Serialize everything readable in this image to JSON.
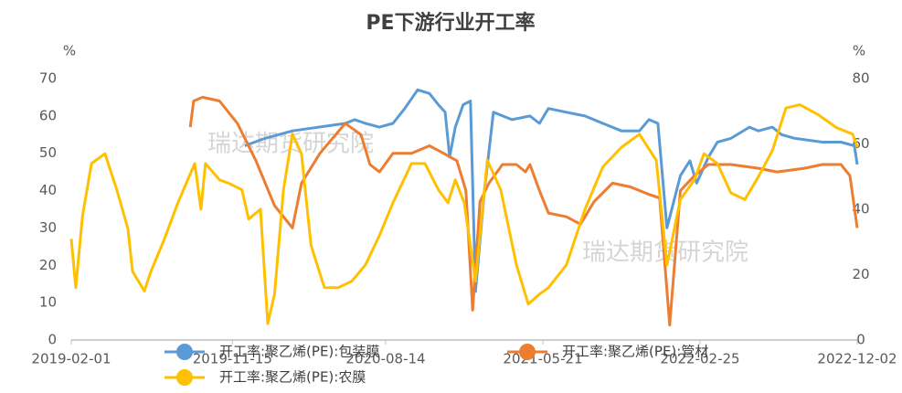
{
  "chart_data": {
    "type": "line",
    "title": "PE下游行业开工率",
    "y_unit": "%",
    "y2_unit": "%",
    "watermarks": [
      "瑞达期货研究院",
      "瑞达期货研究院"
    ],
    "xlim": [
      "2019-02-01",
      "2022-12-02"
    ],
    "xticks": [
      "2019-02-01",
      "2019-11-15",
      "2020-08-14",
      "2021-05-21",
      "2022-02-25",
      "2022-12-02"
    ],
    "ylim": [
      0,
      70
    ],
    "yticks": [
      0,
      10,
      20,
      30,
      40,
      50,
      60,
      70
    ],
    "y2lim": [
      0,
      80
    ],
    "y2ticks": [
      0,
      20,
      40,
      60,
      80
    ],
    "grid": false,
    "legend": "bottom",
    "series": [
      {
        "name": "开工率:聚乙烯(PE):包装膜",
        "color": "#5b9bd5",
        "x": [
          "2019-12-07",
          "2020-01-12",
          "2020-03-01",
          "2020-06-03",
          "2020-06-20",
          "2020-07-09",
          "2020-08-03",
          "2020-08-27",
          "2020-09-17",
          "2020-10-10",
          "2020-10-31",
          "2020-11-16",
          "2020-11-28",
          "2020-12-06",
          "2020-12-16",
          "2020-12-30",
          "2021-01-12",
          "2021-01-21",
          "2021-02-06",
          "2021-02-22",
          "2021-03-27",
          "2021-04-28",
          "2021-05-15",
          "2021-05-31",
          "2021-07-02",
          "2021-08-04",
          "2021-09-05",
          "2021-10-08",
          "2021-11-09",
          "2021-11-26",
          "2021-12-12",
          "2021-12-28",
          "2022-01-21",
          "2022-02-07",
          "2022-02-19",
          "2022-03-12",
          "2022-03-28",
          "2022-04-21",
          "2022-05-24",
          "2022-06-09",
          "2022-07-04",
          "2022-07-20",
          "2022-08-13",
          "2022-10-01",
          "2022-11-03",
          "2022-11-27",
          "2022-12-02"
        ],
        "values": [
          52,
          54,
          56,
          58,
          59,
          58,
          57,
          58,
          62,
          67,
          66,
          63,
          61,
          49,
          57,
          63,
          64,
          13,
          40,
          61,
          59,
          60,
          58,
          62,
          61,
          60,
          58,
          56,
          56,
          59,
          58,
          30,
          44,
          48,
          42,
          49,
          53,
          54,
          57,
          56,
          57,
          55,
          54,
          53,
          53,
          52,
          47
        ]
      },
      {
        "name": "开工率:聚乙烯(PE):管材",
        "color": "#ed7d31",
        "x": [
          "2019-09-01",
          "2019-09-07",
          "2019-09-23",
          "2019-10-23",
          "2019-11-24",
          "2019-12-27",
          "2020-01-29",
          "2020-03-01",
          "2020-03-17",
          "2020-04-19",
          "2020-06-03",
          "2020-07-01",
          "2020-07-17",
          "2020-08-03",
          "2020-08-27",
          "2020-09-29",
          "2020-10-31",
          "2020-11-25",
          "2020-12-19",
          "2021-01-04",
          "2021-01-16",
          "2021-01-29",
          "2021-02-14",
          "2021-03-10",
          "2021-04-04",
          "2021-04-20",
          "2021-04-28",
          "2021-05-15",
          "2021-05-31",
          "2021-07-02",
          "2021-07-27",
          "2021-08-20",
          "2021-09-22",
          "2021-10-24",
          "2021-11-26",
          "2021-12-15",
          "2022-01-02",
          "2022-01-21",
          "2022-02-15",
          "2022-03-12",
          "2022-04-21",
          "2022-06-09",
          "2022-07-12",
          "2022-08-30",
          "2022-10-01",
          "2022-11-03",
          "2022-11-19",
          "2022-12-02"
        ],
        "values": [
          57,
          64,
          65,
          64,
          58,
          48,
          36,
          30,
          42,
          50,
          58,
          55,
          47,
          45,
          50,
          50,
          52,
          50,
          48,
          40,
          8,
          37,
          42,
          47,
          47,
          45,
          47,
          40,
          34,
          33,
          31,
          37,
          42,
          41,
          39,
          38,
          4,
          40,
          44,
          47,
          47,
          46,
          45,
          46,
          47,
          47,
          44,
          30
        ]
      },
      {
        "name": "开工率:聚乙烯(PE):农膜",
        "color": "#ffc000",
        "axis": "y2",
        "x": [
          "2019-02-01",
          "2019-02-09",
          "2019-02-21",
          "2019-03-09",
          "2019-04-02",
          "2019-04-23",
          "2019-05-13",
          "2019-05-21",
          "2019-06-11",
          "2019-06-23",
          "2019-07-17",
          "2019-08-10",
          "2019-09-09",
          "2019-09-20",
          "2019-09-28",
          "2019-10-23",
          "2019-11-08",
          "2019-12-02",
          "2019-12-14",
          "2020-01-04",
          "2020-01-17",
          "2020-01-29",
          "2020-02-14",
          "2020-03-01",
          "2020-03-17",
          "2020-04-03",
          "2020-04-27",
          "2020-05-21",
          "2020-06-15",
          "2020-07-09",
          "2020-08-03",
          "2020-08-27",
          "2020-09-29",
          "2020-10-23",
          "2020-11-16",
          "2020-12-03",
          "2020-12-16",
          "2021-01-01",
          "2021-01-21",
          "2021-02-11",
          "2021-03-07",
          "2021-04-04",
          "2021-04-25",
          "2021-05-15",
          "2021-05-31",
          "2021-07-02",
          "2021-08-04",
          "2021-09-05",
          "2021-10-08",
          "2021-11-09",
          "2021-12-09",
          "2021-12-28",
          "2022-01-21",
          "2022-02-15",
          "2022-03-04",
          "2022-03-28",
          "2022-04-21",
          "2022-05-16",
          "2022-06-09",
          "2022-07-04",
          "2022-07-28",
          "2022-08-22",
          "2022-09-23",
          "2022-10-26",
          "2022-11-24",
          "2022-12-02"
        ],
        "values": [
          31,
          16,
          38,
          54,
          57,
          46,
          34,
          21,
          15,
          21,
          31,
          42,
          54,
          40,
          54,
          49,
          48,
          46,
          37,
          40,
          5,
          14,
          46,
          63,
          57,
          29,
          16,
          16,
          18,
          23,
          32,
          42,
          54,
          54,
          46,
          42,
          49,
          42,
          18,
          55,
          46,
          23,
          11,
          14,
          16,
          23,
          40,
          53,
          59,
          63,
          55,
          23,
          43,
          49,
          57,
          54,
          45,
          43,
          50,
          58,
          71,
          72,
          69,
          65,
          63,
          59
        ]
      }
    ]
  }
}
